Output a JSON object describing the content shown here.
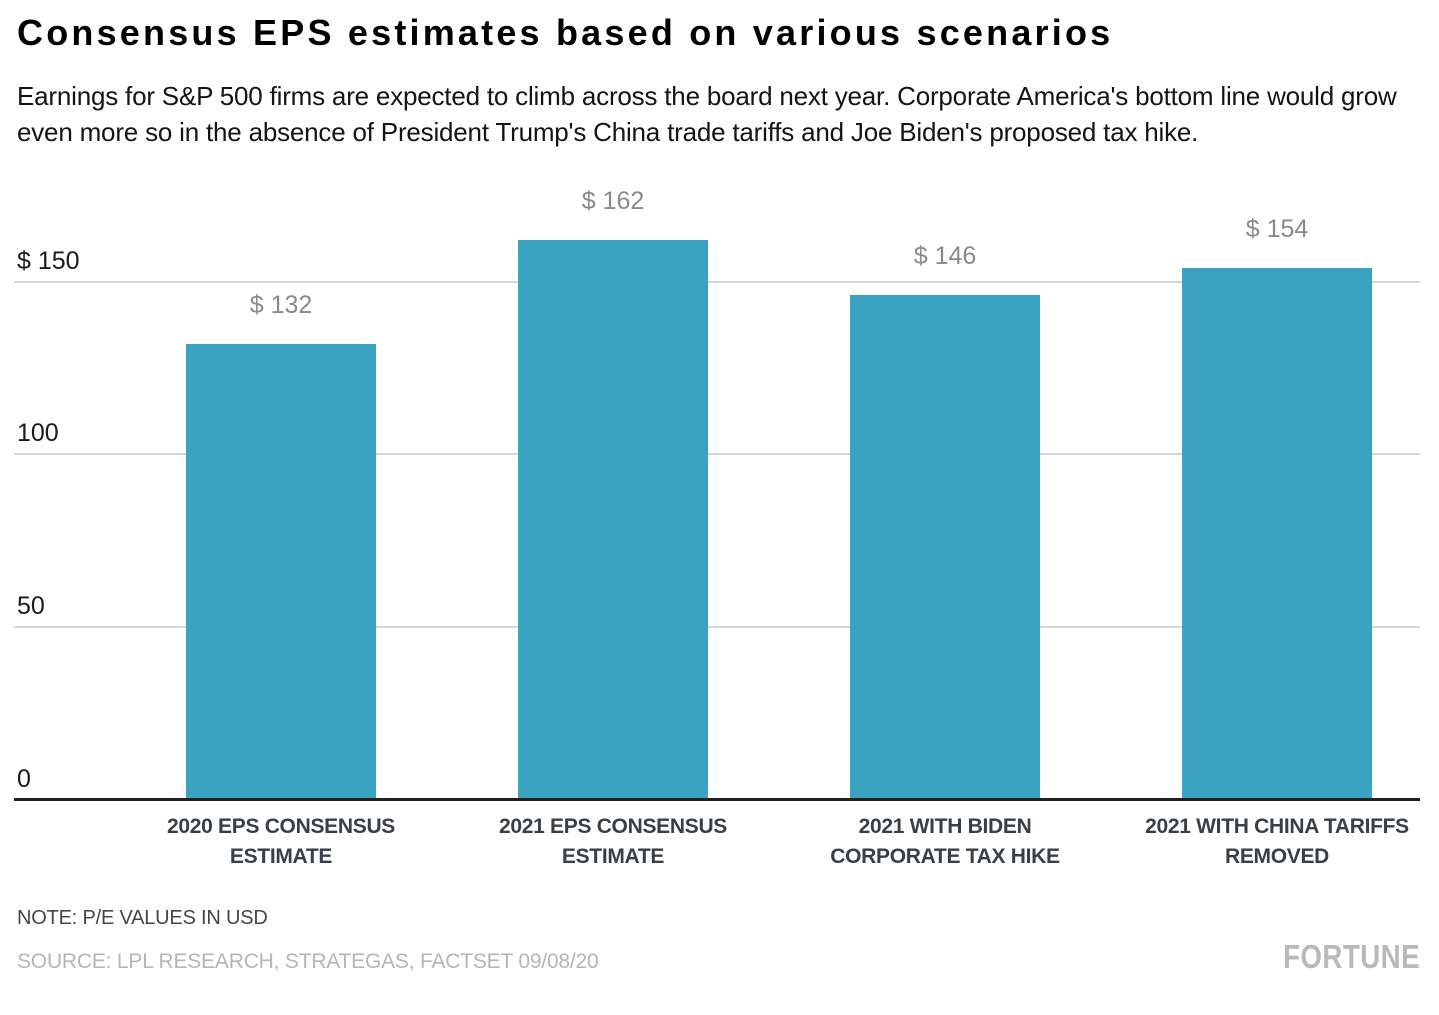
{
  "chart_data": {
    "type": "bar",
    "title": "Consensus EPS estimates based on various scenarios",
    "subtitle": "Earnings for S&P 500 firms are expected to climb across the board next year. Corporate America's bottom line would grow even more so in the absence of President Trump's China trade tariffs and Joe Biden's proposed tax hike.",
    "categories": [
      "2020 EPS CONSENSUS ESTIMATE",
      "2021 EPS CONSENSUS ESTIMATE",
      "2021 WITH BIDEN CORPORATE TAX HIKE",
      "2021 WITH CHINA TARIFFS REMOVED"
    ],
    "category_lines": [
      [
        "2020 EPS CONSENSUS",
        "ESTIMATE"
      ],
      [
        "2021 EPS CONSENSUS",
        "ESTIMATE"
      ],
      [
        "2021 WITH BIDEN",
        "CORPORATE TAX HIKE"
      ],
      [
        "2021 WITH CHINA TARIFFS",
        "REMOVED"
      ]
    ],
    "values": [
      132,
      162,
      146,
      154
    ],
    "value_labels": [
      "$ 132",
      "$ 162",
      "$ 146",
      "$ 154"
    ],
    "yticks": [
      {
        "value": 150,
        "label": "$ 150"
      },
      {
        "value": 100,
        "label": "100"
      },
      {
        "value": 50,
        "label": "50"
      },
      {
        "value": 0,
        "label": "0"
      }
    ],
    "ylim": [
      0,
      176
    ],
    "grid": true,
    "legend_position": "none",
    "xlabel": "",
    "ylabel": "",
    "units": "USD",
    "bar_color": "#3AA3C2",
    "grid_color": "#D5D5D5",
    "axis_color": "#1F1F1F",
    "value_label_color": "#8A8A8A",
    "category_label_color": "#3A3F45"
  },
  "footer": {
    "note": "NOTE: P/E VALUES IN USD",
    "source": "SOURCE: LPL RESEARCH, STRATEGAS, FACTSET 09/08/20",
    "brand": "FORTUNE"
  }
}
